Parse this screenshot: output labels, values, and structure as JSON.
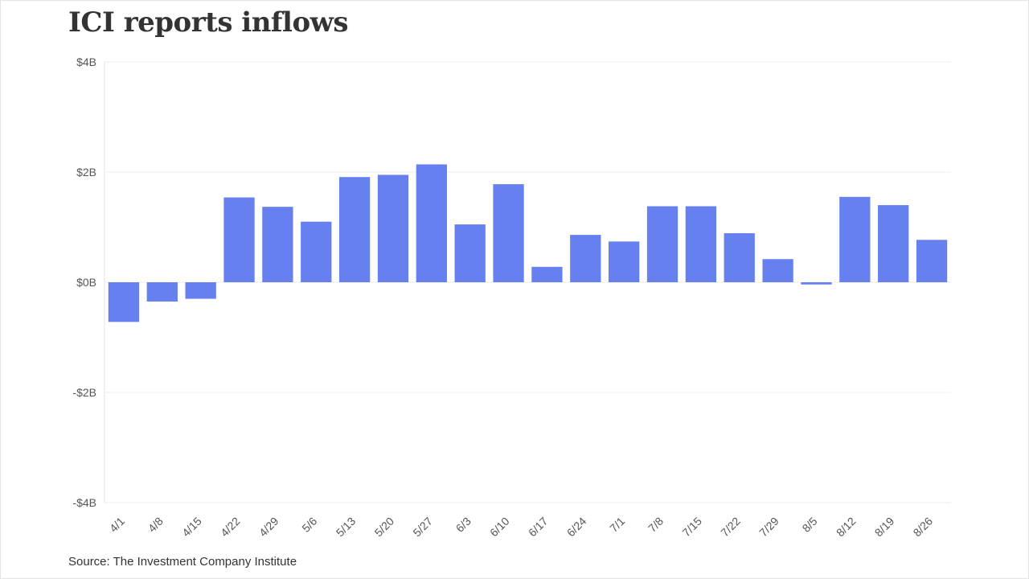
{
  "chart_data": {
    "type": "bar",
    "title": "ICI reports inflows",
    "xlabel": "",
    "ylabel": "",
    "categories": [
      "4/1",
      "4/8",
      "4/15",
      "4/22",
      "4/29",
      "5/6",
      "5/13",
      "5/20",
      "5/27",
      "6/3",
      "6/10",
      "6/17",
      "6/24",
      "7/1",
      "7/8",
      "7/15",
      "7/22",
      "7/29",
      "8/5",
      "8/12",
      "8/19",
      "8/26"
    ],
    "values": [
      -0.72,
      -0.35,
      -0.3,
      1.54,
      1.37,
      1.1,
      1.91,
      1.95,
      2.14,
      1.05,
      1.78,
      0.28,
      0.86,
      0.74,
      1.38,
      1.38,
      0.89,
      0.42,
      -0.04,
      1.55,
      1.4,
      0.77
    ],
    "unit": "billions of dollars",
    "ylim": [
      -4,
      4
    ],
    "yticks": [
      {
        "value": 4,
        "label": "$4B"
      },
      {
        "value": 2,
        "label": "$2B"
      },
      {
        "value": 0,
        "label": "$0B"
      },
      {
        "value": -2,
        "label": "-$2B"
      },
      {
        "value": -4,
        "label": "-$4B"
      }
    ],
    "grid": true,
    "legend": "none",
    "bar_color": "#6680f0",
    "source": "Source: The Investment Company Institute"
  }
}
